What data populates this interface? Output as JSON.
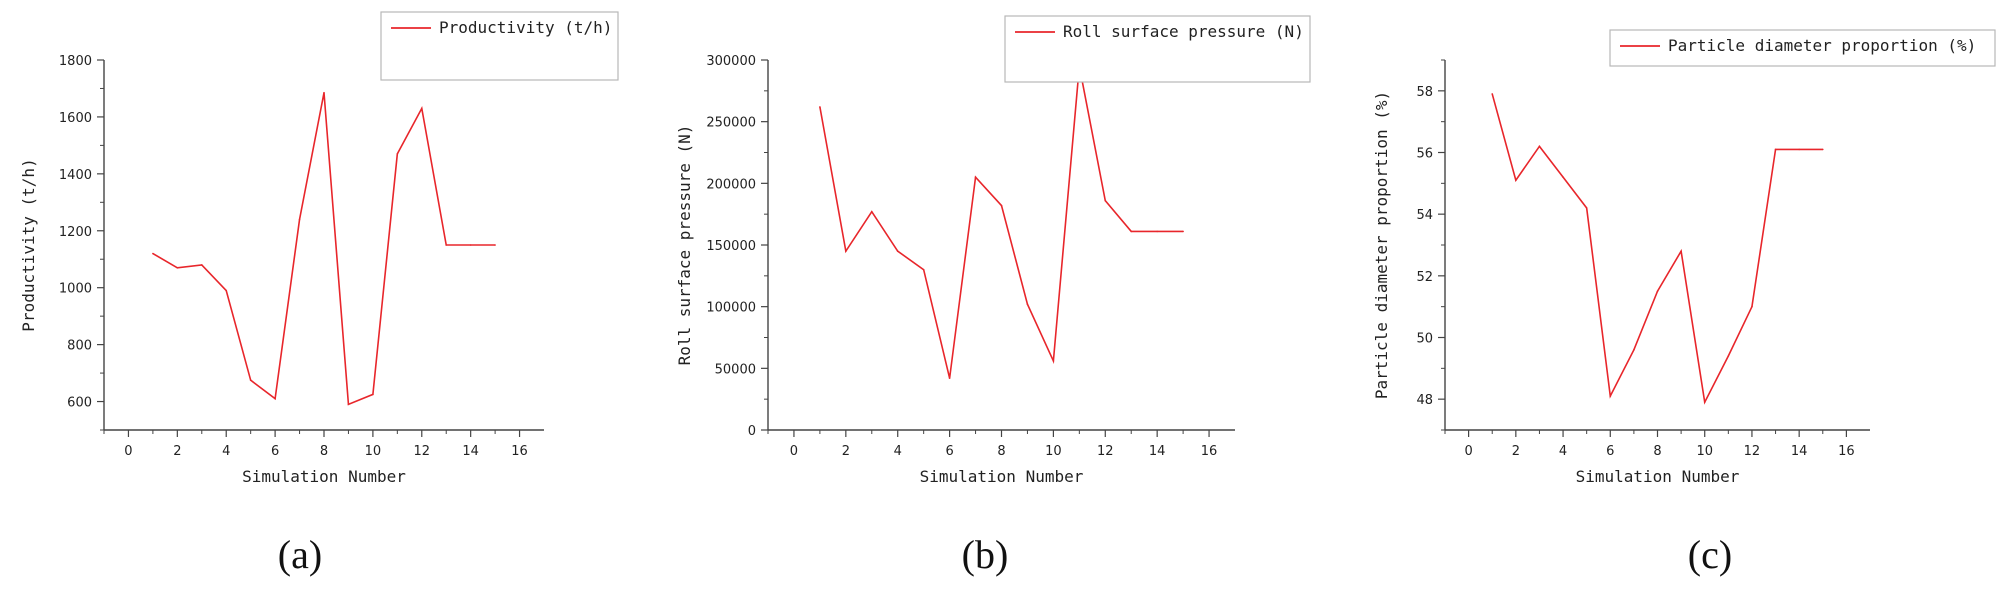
{
  "colors": {
    "series": "#e8262b",
    "axis": "#444444",
    "legend_border": "#b8b8b8"
  },
  "chart_data": [
    {
      "type": "line",
      "panel_label": "(a)",
      "xlabel": "Simulation Number",
      "ylabel": "Productivity (t/h)",
      "xlim": [
        -1,
        17
      ],
      "ylim": [
        500,
        1800
      ],
      "xticks": [
        0,
        2,
        4,
        6,
        8,
        10,
        12,
        14,
        16
      ],
      "yticks": [
        600,
        800,
        1000,
        1200,
        1400,
        1600,
        1800
      ],
      "grid": false,
      "legend_position": "top-right",
      "series": [
        {
          "name": "Productivity (t/h)",
          "x": [
            1,
            2,
            3,
            4,
            5,
            6,
            7,
            8,
            9,
            10,
            11,
            12,
            13,
            14,
            15
          ],
          "y": [
            1120,
            1070,
            1080,
            990,
            675,
            610,
            1240,
            1685,
            590,
            625,
            1470,
            1630,
            1150,
            1150,
            1150
          ]
        }
      ]
    },
    {
      "type": "line",
      "panel_label": "(b)",
      "xlabel": "Simulation Number",
      "ylabel": "Roll surface pressure (N)",
      "xlim": [
        -1,
        17
      ],
      "ylim": [
        0,
        300000
      ],
      "xticks": [
        0,
        2,
        4,
        6,
        8,
        10,
        12,
        14,
        16
      ],
      "yticks": [
        0,
        50000,
        100000,
        150000,
        200000,
        250000,
        300000
      ],
      "grid": false,
      "legend_position": "top-right",
      "series": [
        {
          "name": "Roll surface pressure (N)",
          "x": [
            1,
            2,
            3,
            4,
            5,
            6,
            7,
            8,
            9,
            10,
            11,
            12,
            13,
            14,
            15
          ],
          "y": [
            262000,
            145000,
            177000,
            145000,
            130000,
            42000,
            205000,
            182000,
            102000,
            56000,
            295000,
            186000,
            161000,
            161000,
            161000
          ]
        }
      ]
    },
    {
      "type": "line",
      "panel_label": "(c)",
      "xlabel": "Simulation Number",
      "ylabel": "Particle diameter proportion (%)",
      "xlim": [
        -1,
        17
      ],
      "ylim": [
        47,
        59
      ],
      "xticks": [
        0,
        2,
        4,
        6,
        8,
        10,
        12,
        14,
        16
      ],
      "yticks": [
        48,
        50,
        52,
        54,
        56,
        58
      ],
      "grid": false,
      "legend_position": "top-right",
      "series": [
        {
          "name": "Particle diameter proportion (%)",
          "x": [
            1,
            2,
            3,
            4,
            5,
            6,
            7,
            8,
            9,
            10,
            11,
            12,
            13,
            14,
            15
          ],
          "y": [
            57.9,
            55.1,
            56.2,
            55.2,
            54.2,
            48.1,
            49.6,
            51.5,
            52.8,
            47.9,
            49.4,
            51.0,
            56.1,
            56.1,
            56.1
          ]
        }
      ]
    }
  ]
}
